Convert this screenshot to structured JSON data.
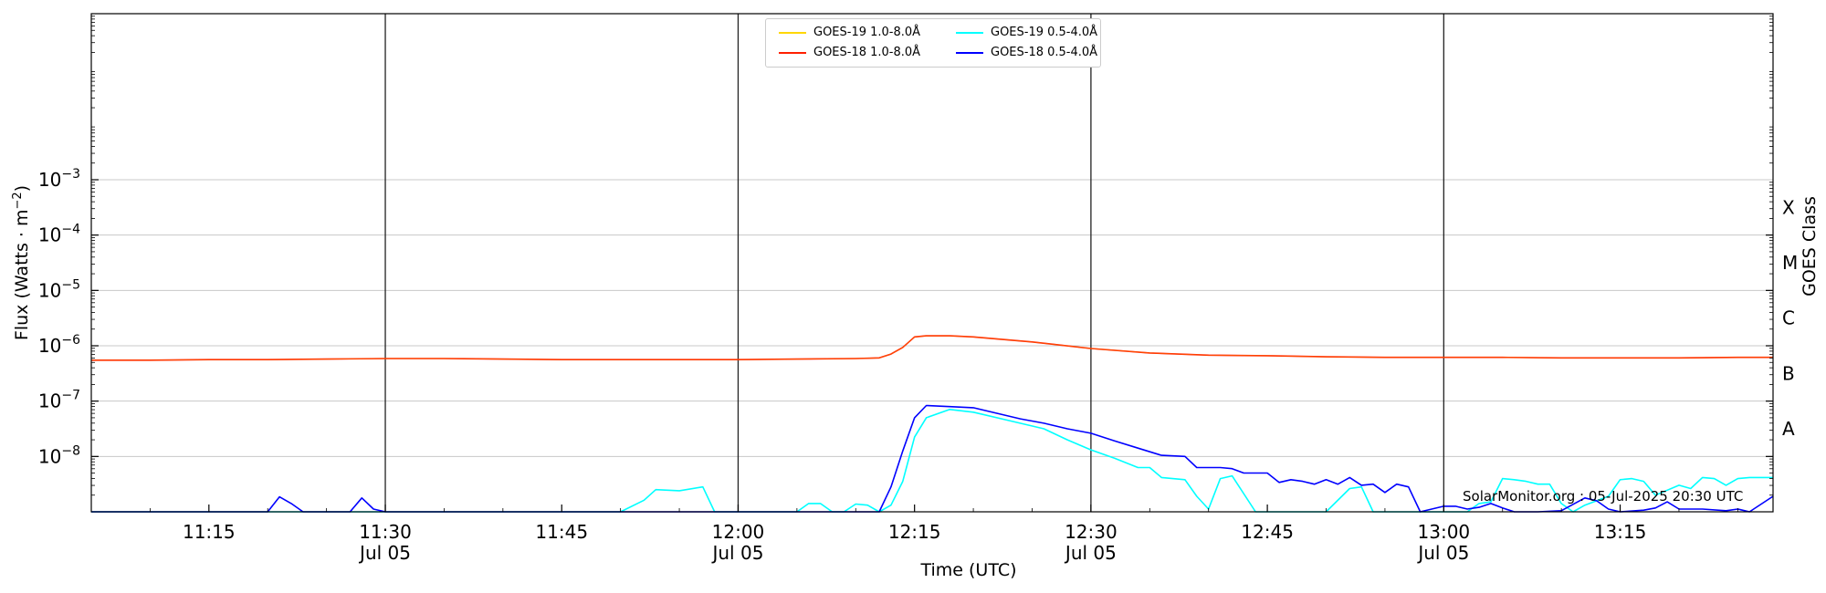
{
  "chart_data": {
    "type": "line",
    "ylabel_main": "Flux (Watts · m",
    "ylabel_sup": "−2",
    "ylabel_close": ")",
    "xlabel": "Time (UTC)",
    "right_axis_label": "GOES Class",
    "y_scale": "log",
    "ylim": [
      -9.0,
      0.0
    ],
    "xlim": [
      "11:05",
      "13:28"
    ],
    "y_ticks": [
      {
        "base": "10",
        "exp": "−3",
        "value": -3
      },
      {
        "base": "10",
        "exp": "−4",
        "value": -4
      },
      {
        "base": "10",
        "exp": "−5",
        "value": -5
      },
      {
        "base": "10",
        "exp": "−6",
        "value": -6
      },
      {
        "base": "10",
        "exp": "−7",
        "value": -7
      },
      {
        "base": "10",
        "exp": "−8",
        "value": -8
      }
    ],
    "x_ticks": [
      {
        "time": "11:15",
        "label": "11:15",
        "sub": ""
      },
      {
        "time": "11:30",
        "label": "11:30",
        "sub": "Jul 05"
      },
      {
        "time": "11:45",
        "label": "11:45",
        "sub": ""
      },
      {
        "time": "12:00",
        "label": "12:00",
        "sub": "Jul 05"
      },
      {
        "time": "12:15",
        "label": "12:15",
        "sub": ""
      },
      {
        "time": "12:30",
        "label": "12:30",
        "sub": "Jul 05"
      },
      {
        "time": "12:45",
        "label": "12:45",
        "sub": ""
      },
      {
        "time": "13:00",
        "label": "13:00",
        "sub": "Jul 05"
      },
      {
        "time": "13:15",
        "label": "13:15",
        "sub": ""
      }
    ],
    "vertical_lines": [
      "11:30",
      "12:00",
      "12:30",
      "13:00"
    ],
    "goes_classes": [
      {
        "label": "X",
        "value": -3.5
      },
      {
        "label": "M",
        "value": -4.5
      },
      {
        "label": "C",
        "value": -5.5
      },
      {
        "label": "B",
        "value": -6.5
      },
      {
        "label": "A",
        "value": -7.5
      }
    ],
    "grid": true,
    "legend_placement": "top-center",
    "series": [
      {
        "name": "GOES-19 1.0-8.0Å",
        "color": "#ffd700",
        "points": []
      },
      {
        "name": "GOES-18 1.0-8.0Å",
        "color": "#ff0000",
        "overlay_color": "#ff8c00",
        "points": [
          [
            "11:05",
            -6.26
          ],
          [
            "11:10",
            -6.26
          ],
          [
            "11:15",
            -6.25
          ],
          [
            "11:20",
            -6.25
          ],
          [
            "11:25",
            -6.24
          ],
          [
            "11:30",
            -6.23
          ],
          [
            "11:35",
            -6.23
          ],
          [
            "11:40",
            -6.24
          ],
          [
            "11:45",
            -6.25
          ],
          [
            "11:50",
            -6.25
          ],
          [
            "11:55",
            -6.25
          ],
          [
            "12:00",
            -6.25
          ],
          [
            "12:05",
            -6.24
          ],
          [
            "12:10",
            -6.23
          ],
          [
            "12:12",
            -6.22
          ],
          [
            "12:13",
            -6.15
          ],
          [
            "12:14",
            -6.03
          ],
          [
            "12:15",
            -5.84
          ],
          [
            "12:16",
            -5.82
          ],
          [
            "12:18",
            -5.82
          ],
          [
            "12:20",
            -5.84
          ],
          [
            "12:25",
            -5.93
          ],
          [
            "12:30",
            -6.05
          ],
          [
            "12:35",
            -6.13
          ],
          [
            "12:40",
            -6.17
          ],
          [
            "12:45",
            -6.18
          ],
          [
            "12:50",
            -6.2
          ],
          [
            "12:55",
            -6.21
          ],
          [
            "13:00",
            -6.21
          ],
          [
            "13:05",
            -6.21
          ],
          [
            "13:10",
            -6.22
          ],
          [
            "13:15",
            -6.22
          ],
          [
            "13:20",
            -6.22
          ],
          [
            "13:25",
            -6.21
          ],
          [
            "13:28",
            -6.21
          ]
        ]
      },
      {
        "name": "GOES-19 0.5-4.0Å",
        "color": "#00ffff",
        "points": [
          [
            "11:05",
            -9.0
          ],
          [
            "11:50",
            -9.0
          ],
          [
            "11:52",
            -8.79
          ],
          [
            "11:53",
            -8.6
          ],
          [
            "11:55",
            -8.62
          ],
          [
            "11:57",
            -8.55
          ],
          [
            "11:58",
            -9.0
          ],
          [
            "12:05",
            -9.0
          ],
          [
            "12:06",
            -8.85
          ],
          [
            "12:07",
            -8.85
          ],
          [
            "12:08",
            -9.0
          ],
          [
            "12:09",
            -9.0
          ],
          [
            "12:10",
            -8.86
          ],
          [
            "12:11",
            -8.88
          ],
          [
            "12:12",
            -9.0
          ],
          [
            "12:13",
            -8.88
          ],
          [
            "12:14",
            -8.45
          ],
          [
            "12:15",
            -7.65
          ],
          [
            "12:16",
            -7.3
          ],
          [
            "12:18",
            -7.15
          ],
          [
            "12:20",
            -7.2
          ],
          [
            "12:23",
            -7.35
          ],
          [
            "12:26",
            -7.5
          ],
          [
            "12:28",
            -7.7
          ],
          [
            "12:30",
            -7.88
          ],
          [
            "12:32",
            -8.03
          ],
          [
            "12:34",
            -8.2
          ],
          [
            "12:35",
            -8.2
          ],
          [
            "12:36",
            -8.38
          ],
          [
            "12:38",
            -8.42
          ],
          [
            "12:39",
            -8.72
          ],
          [
            "12:40",
            -8.95
          ],
          [
            "12:41",
            -8.4
          ],
          [
            "12:42",
            -8.35
          ],
          [
            "12:44",
            -9.0
          ],
          [
            "12:50",
            -9.0
          ],
          [
            "12:52",
            -8.58
          ],
          [
            "12:53",
            -8.55
          ],
          [
            "12:54",
            -9.0
          ],
          [
            "13:02",
            -9.0
          ],
          [
            "13:03",
            -8.85
          ],
          [
            "13:04",
            -8.82
          ],
          [
            "13:05",
            -8.4
          ],
          [
            "13:06",
            -8.42
          ],
          [
            "13:07",
            -8.45
          ],
          [
            "13:08",
            -8.5
          ],
          [
            "13:09",
            -8.5
          ],
          [
            "13:10",
            -8.85
          ],
          [
            "13:11",
            -9.0
          ],
          [
            "13:12",
            -8.88
          ],
          [
            "13:14",
            -8.72
          ],
          [
            "13:15",
            -8.42
          ],
          [
            "13:16",
            -8.4
          ],
          [
            "13:17",
            -8.45
          ],
          [
            "13:18",
            -8.7
          ],
          [
            "13:20",
            -8.52
          ],
          [
            "13:21",
            -8.58
          ],
          [
            "13:22",
            -8.38
          ],
          [
            "13:23",
            -8.4
          ],
          [
            "13:24",
            -8.52
          ],
          [
            "13:25",
            -8.4
          ],
          [
            "13:26",
            -8.38
          ],
          [
            "13:28",
            -8.38
          ]
        ]
      },
      {
        "name": "GOES-18 0.5-4.0Å",
        "color": "#0000ff",
        "points": [
          [
            "11:05",
            -9.0
          ],
          [
            "11:15",
            -9.0
          ],
          [
            "11:16",
            -9.0
          ],
          [
            "11:17",
            -9.0
          ],
          [
            "11:18",
            -9.0
          ],
          [
            "11:19",
            -9.0
          ],
          [
            "11:20",
            -9.0
          ],
          [
            "11:21",
            -8.73
          ],
          [
            "11:22",
            -8.85
          ],
          [
            "11:23",
            -9.0
          ],
          [
            "11:27",
            -9.0
          ],
          [
            "11:28",
            -8.75
          ],
          [
            "11:29",
            -8.95
          ],
          [
            "11:30",
            -9.0
          ],
          [
            "12:11",
            -9.0
          ],
          [
            "12:12",
            -9.0
          ],
          [
            "12:13",
            -8.55
          ],
          [
            "12:14",
            -7.9
          ],
          [
            "12:15",
            -7.3
          ],
          [
            "12:16",
            -7.08
          ],
          [
            "12:18",
            -7.1
          ],
          [
            "12:20",
            -7.12
          ],
          [
            "12:22",
            -7.22
          ],
          [
            "12:24",
            -7.32
          ],
          [
            "12:26",
            -7.4
          ],
          [
            "12:28",
            -7.5
          ],
          [
            "12:30",
            -7.58
          ],
          [
            "12:32",
            -7.72
          ],
          [
            "12:34",
            -7.85
          ],
          [
            "12:36",
            -7.98
          ],
          [
            "12:37",
            -7.99
          ],
          [
            "12:38",
            -8.0
          ],
          [
            "12:39",
            -8.2
          ],
          [
            "12:40",
            -8.2
          ],
          [
            "12:41",
            -8.2
          ],
          [
            "12:42",
            -8.22
          ],
          [
            "12:43",
            -8.3
          ],
          [
            "12:44",
            -8.3
          ],
          [
            "12:45",
            -8.3
          ],
          [
            "12:46",
            -8.47
          ],
          [
            "12:47",
            -8.42
          ],
          [
            "12:48",
            -8.45
          ],
          [
            "12:49",
            -8.5
          ],
          [
            "12:50",
            -8.42
          ],
          [
            "12:51",
            -8.5
          ],
          [
            "12:52",
            -8.38
          ],
          [
            "12:53",
            -8.52
          ],
          [
            "12:54",
            -8.5
          ],
          [
            "12:55",
            -8.65
          ],
          [
            "12:56",
            -8.5
          ],
          [
            "12:57",
            -8.55
          ],
          [
            "12:58",
            -9.0
          ],
          [
            "13:00",
            -8.9
          ],
          [
            "13:01",
            -8.9
          ],
          [
            "13:02",
            -8.95
          ],
          [
            "13:03",
            -8.92
          ],
          [
            "13:04",
            -8.85
          ],
          [
            "13:05",
            -8.93
          ],
          [
            "13:06",
            -9.0
          ],
          [
            "13:08",
            -9.0
          ],
          [
            "13:10",
            -8.98
          ],
          [
            "13:12",
            -8.75
          ],
          [
            "13:13",
            -8.8
          ],
          [
            "13:14",
            -8.95
          ],
          [
            "13:15",
            -9.0
          ],
          [
            "13:17",
            -8.97
          ],
          [
            "13:18",
            -8.93
          ],
          [
            "13:19",
            -8.82
          ],
          [
            "13:20",
            -8.95
          ],
          [
            "13:22",
            -8.95
          ],
          [
            "13:24",
            -8.98
          ],
          [
            "13:25",
            -8.95
          ],
          [
            "13:26",
            -9.0
          ],
          [
            "13:28",
            -8.72
          ]
        ]
      }
    ],
    "watermark": "SolarMonitor.org : 05-Jul-2025 20:30 UTC"
  }
}
